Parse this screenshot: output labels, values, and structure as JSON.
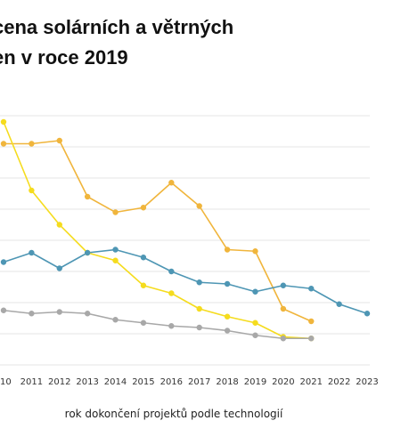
{
  "title_lines": [
    "cena solárních a větrných",
    "en v roce 2019"
  ],
  "chart_data": {
    "type": "line",
    "title": "cena solárních a větrných en v roce 2019",
    "xlabel": "rok dokončení projektů podle technologií",
    "ylabel": "",
    "x_ticks": [
      "10",
      "2011",
      "2012",
      "2013",
      "2014",
      "2015",
      "2016",
      "2017",
      "2018",
      "2019",
      "2020",
      "2021",
      "2022",
      "2023"
    ],
    "x": [
      2010,
      2011,
      2012,
      2013,
      2014,
      2015,
      2016,
      2017,
      2018,
      2019,
      2020,
      2021,
      2022,
      2023
    ],
    "xlim": [
      2010,
      2023
    ],
    "ylim": [
      0,
      8
    ],
    "grid": true,
    "series": [
      {
        "color": "#f0b53c",
        "points": [
          [
            2010,
            7.1
          ],
          [
            2011,
            7.1
          ],
          [
            2012,
            7.2
          ],
          [
            2013,
            5.4
          ],
          [
            2014,
            4.9
          ],
          [
            2015,
            5.05
          ],
          [
            2016,
            5.85
          ],
          [
            2017,
            5.1
          ],
          [
            2018,
            3.7
          ],
          [
            2019,
            3.65
          ],
          [
            2020,
            1.8
          ],
          [
            2021,
            1.4
          ]
        ]
      },
      {
        "color": "#f5dc1e",
        "points": [
          [
            2010,
            7.8
          ],
          [
            2011,
            5.6
          ],
          [
            2012,
            4.5
          ],
          [
            2013,
            3.6
          ],
          [
            2014,
            3.35
          ],
          [
            2015,
            2.55
          ],
          [
            2016,
            2.3
          ],
          [
            2017,
            1.8
          ],
          [
            2018,
            1.55
          ],
          [
            2019,
            1.35
          ],
          [
            2020,
            0.9
          ],
          [
            2021,
            0.85
          ]
        ]
      },
      {
        "color": "#4e96b4",
        "points": [
          [
            2010,
            3.3
          ],
          [
            2011,
            3.6
          ],
          [
            2012,
            3.1
          ],
          [
            2013,
            3.6
          ],
          [
            2014,
            3.7
          ],
          [
            2015,
            3.45
          ],
          [
            2016,
            3.0
          ],
          [
            2017,
            2.65
          ],
          [
            2018,
            2.6
          ],
          [
            2019,
            2.35
          ],
          [
            2020,
            2.55
          ],
          [
            2021,
            2.45
          ],
          [
            2022,
            1.95
          ],
          [
            2023,
            1.65
          ]
        ]
      },
      {
        "color": "#a8a8a8",
        "points": [
          [
            2010,
            1.75
          ],
          [
            2011,
            1.65
          ],
          [
            2012,
            1.7
          ],
          [
            2013,
            1.65
          ],
          [
            2014,
            1.45
          ],
          [
            2015,
            1.35
          ],
          [
            2016,
            1.25
          ],
          [
            2017,
            1.2
          ],
          [
            2018,
            1.1
          ],
          [
            2019,
            0.95
          ],
          [
            2020,
            0.85
          ],
          [
            2021,
            0.85
          ]
        ]
      }
    ]
  }
}
